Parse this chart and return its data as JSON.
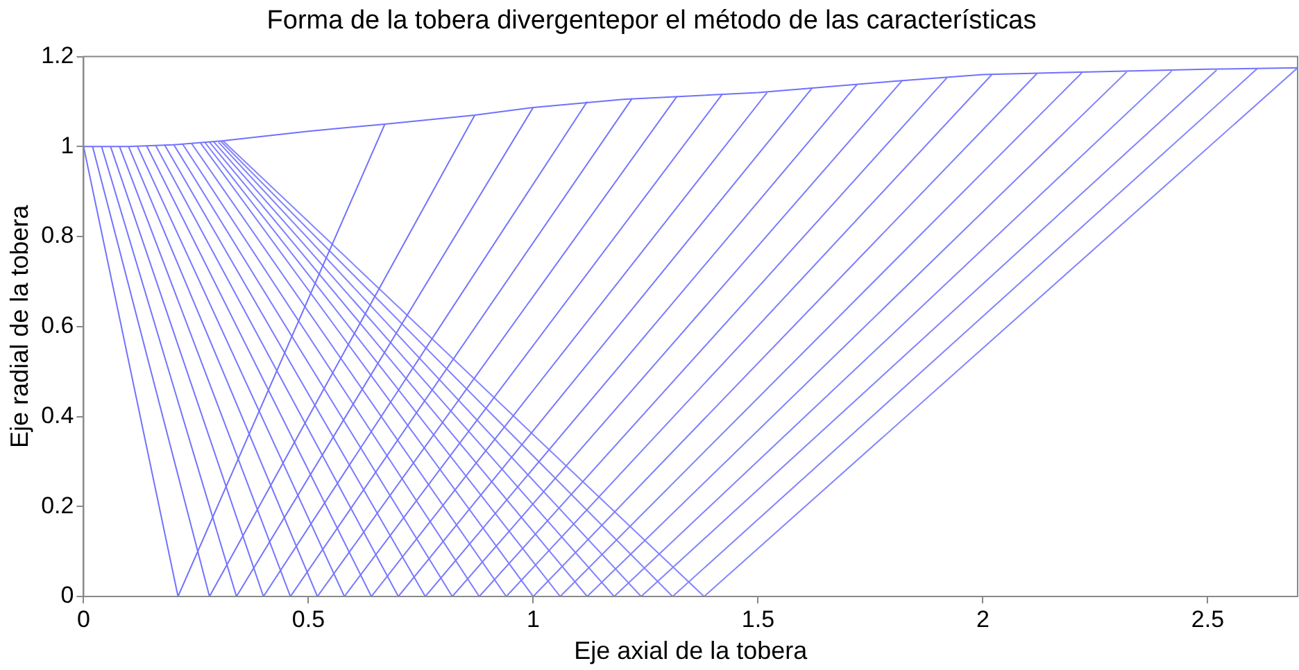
{
  "chart_data": {
    "type": "line",
    "title": "Forma de la tobera divergentepor el método de las características",
    "xlabel": "Eje axial de la tobera",
    "ylabel": "Eje radial de la tobera",
    "xlim": [
      0,
      2.7
    ],
    "xticks": [
      0,
      0.5,
      1,
      1.5,
      2,
      2.5
    ],
    "ylim": [
      0,
      1.2
    ],
    "yticks": [
      0,
      0.2,
      0.4,
      0.6,
      0.8,
      1,
      1.2
    ],
    "grid": false,
    "marker": "none",
    "line_style": "solid",
    "series": [
      {
        "color": "#7070ff",
        "x": [
          0,
          0.1,
          0.2,
          0.31,
          0.5,
          0.67,
          0.87,
          1.0,
          1.2,
          1.5,
          1.8,
          2.0,
          2.2,
          2.5,
          2.7
        ],
        "values": [
          1,
          1.0,
          1.004,
          1.013,
          1.034,
          1.05,
          1.07,
          1.087,
          1.105,
          1.12,
          1.145,
          1.16,
          1.165,
          1.172,
          1.175
        ]
      },
      {
        "color": "#7171ff",
        "x": [
          0,
          0.21,
          0.67
        ],
        "values": [
          1,
          0,
          1.05
        ]
      },
      {
        "color": "#7272ff",
        "x": [
          0.02,
          0.28,
          0.87
        ],
        "values": [
          1.0,
          0,
          1.07
        ]
      },
      {
        "color": "#7373ff",
        "x": [
          0.04,
          0.34,
          1.0
        ],
        "values": [
          1.0,
          0,
          1.087
        ]
      },
      {
        "color": "#7474ff",
        "x": [
          0.06,
          0.4,
          1.12
        ],
        "values": [
          1.0,
          0,
          1.1
        ]
      },
      {
        "color": "#7575ff",
        "x": [
          0.08,
          0.46,
          1.22
        ],
        "values": [
          1.0,
          0,
          1.107
        ]
      },
      {
        "color": "#7676ff",
        "x": [
          0.1,
          0.52,
          1.32
        ],
        "values": [
          1.0,
          0,
          1.112
        ]
      },
      {
        "color": "#7777ff",
        "x": [
          0.12,
          0.58,
          1.42
        ],
        "values": [
          1.0,
          0,
          1.116
        ]
      },
      {
        "color": "#7878ff",
        "x": [
          0.14,
          0.64,
          1.52
        ],
        "values": [
          1.002,
          0,
          1.12
        ]
      },
      {
        "color": "#7979ff",
        "x": [
          0.16,
          0.7,
          1.62
        ],
        "values": [
          1.003,
          0,
          1.13
        ]
      },
      {
        "color": "#7a7aff",
        "x": [
          0.18,
          0.76,
          1.72
        ],
        "values": [
          1.004,
          0,
          1.138
        ]
      },
      {
        "color": "#7b7bff",
        "x": [
          0.2,
          0.82,
          1.82
        ],
        "values": [
          1.005,
          0,
          1.146
        ]
      },
      {
        "color": "#7c7cff",
        "x": [
          0.22,
          0.88,
          1.92
        ],
        "values": [
          1.006,
          0,
          1.153
        ]
      },
      {
        "color": "#7d7dff",
        "x": [
          0.24,
          0.94,
          2.02
        ],
        "values": [
          1.007,
          0,
          1.16
        ]
      },
      {
        "color": "#7e7eff",
        "x": [
          0.26,
          1.0,
          2.12
        ],
        "values": [
          1.008,
          0,
          1.162
        ]
      },
      {
        "color": "#7f7fff",
        "x": [
          0.27,
          1.06,
          2.22
        ],
        "values": [
          1.009,
          0,
          1.164
        ]
      },
      {
        "color": "#8080ff",
        "x": [
          0.28,
          1.12,
          2.32
        ],
        "values": [
          1.01,
          0,
          1.166
        ]
      },
      {
        "color": "#8181ff",
        "x": [
          0.29,
          1.18,
          2.42
        ],
        "values": [
          1.01,
          0,
          1.168
        ]
      },
      {
        "color": "#8282ff",
        "x": [
          0.3,
          1.24,
          2.52
        ],
        "values": [
          1.01,
          0,
          1.17
        ]
      },
      {
        "color": "#8383ff",
        "x": [
          0.305,
          1.31,
          2.61
        ],
        "values": [
          1.012,
          0,
          1.173
        ]
      },
      {
        "color": "#8484ff",
        "x": [
          0.31,
          1.38,
          2.7
        ],
        "values": [
          1.013,
          0,
          1.175
        ]
      }
    ]
  }
}
